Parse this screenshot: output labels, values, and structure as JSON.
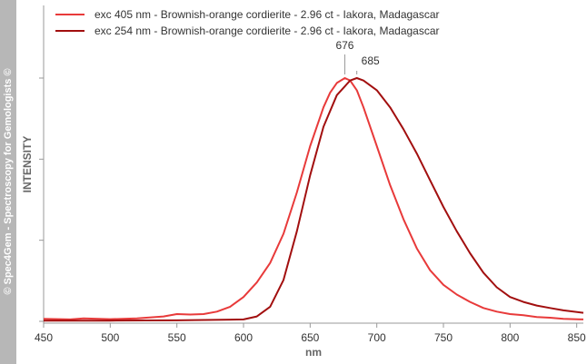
{
  "watermark": "© Spec4Gem - Spectroscopy for Gemologists ©",
  "chart_data": {
    "type": "line",
    "xlabel": "nm",
    "ylabel": "INTENSITY",
    "xlim": [
      450,
      855
    ],
    "ylim": [
      0,
      1
    ],
    "x_ticks": [
      450,
      500,
      550,
      600,
      650,
      700,
      750,
      800,
      850
    ],
    "grid": false,
    "legend_position": "top-left",
    "series": [
      {
        "name": "exc 405 nm - Brownish-orange cordierite - 2.96 ct -  Iakora, Madagascar",
        "color": "#e83a3a",
        "x": [
          450,
          470,
          480,
          500,
          520,
          540,
          550,
          560,
          570,
          580,
          590,
          600,
          610,
          620,
          630,
          640,
          650,
          660,
          665,
          670,
          676,
          680,
          685,
          690,
          700,
          710,
          720,
          730,
          740,
          750,
          760,
          770,
          780,
          790,
          800,
          810,
          820,
          830,
          840,
          855
        ],
        "y": [
          0.01,
          0.008,
          0.012,
          0.009,
          0.012,
          0.02,
          0.03,
          0.028,
          0.03,
          0.04,
          0.06,
          0.1,
          0.16,
          0.24,
          0.36,
          0.53,
          0.72,
          0.88,
          0.94,
          0.98,
          1.0,
          0.99,
          0.95,
          0.88,
          0.72,
          0.56,
          0.42,
          0.3,
          0.21,
          0.15,
          0.11,
          0.08,
          0.055,
          0.04,
          0.03,
          0.025,
          0.018,
          0.015,
          0.01,
          0.008
        ]
      },
      {
        "name": "exc 254 nm - Brownish-orange cordierite - 2.96 ct -  Iakora, Madagascar",
        "color": "#a20f0f",
        "x": [
          450,
          500,
          550,
          600,
          610,
          620,
          630,
          640,
          650,
          660,
          670,
          680,
          685,
          690,
          700,
          710,
          720,
          730,
          740,
          750,
          760,
          770,
          780,
          790,
          800,
          810,
          820,
          830,
          840,
          855
        ],
        "y": [
          0.003,
          0.003,
          0.004,
          0.008,
          0.02,
          0.06,
          0.17,
          0.37,
          0.6,
          0.8,
          0.93,
          0.99,
          1.0,
          0.99,
          0.95,
          0.88,
          0.79,
          0.69,
          0.58,
          0.47,
          0.37,
          0.28,
          0.2,
          0.14,
          0.1,
          0.08,
          0.065,
          0.055,
          0.045,
          0.035
        ]
      }
    ],
    "annotations": [
      {
        "text": "676",
        "x": 676
      },
      {
        "text": "685",
        "x": 685
      }
    ]
  }
}
